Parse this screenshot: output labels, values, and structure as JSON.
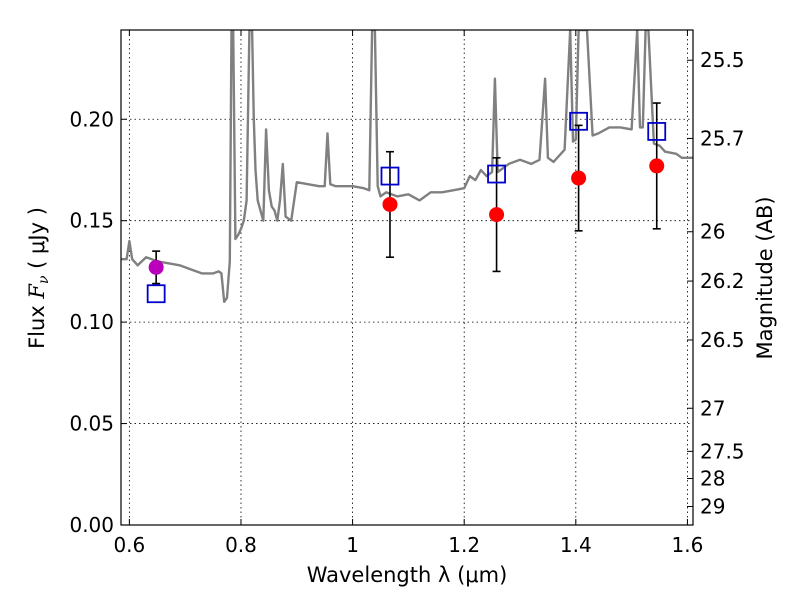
{
  "chart_data": {
    "type": "scatter",
    "xlabel": "Wavelength  λ (μm)",
    "ylabel": "Flux  Fν  ( μJy )",
    "y2label": "Magnitude (AB)",
    "xlim": [
      0.585,
      1.61
    ],
    "ylim": [
      0.0,
      0.244
    ],
    "grid": true,
    "x_ticks": [
      0.6,
      0.8,
      1.0,
      1.2,
      1.4,
      1.6
    ],
    "x_tick_labels": [
      "0.6",
      "0.8",
      "1",
      "1.2",
      "1.4",
      "1.6"
    ],
    "y_ticks": [
      0.0,
      0.05,
      0.1,
      0.15,
      0.2
    ],
    "y_tick_labels": [
      "0.00",
      "0.05",
      "0.10",
      "0.15",
      "0.20"
    ],
    "y2_ticks": [
      {
        "mag": 25.5,
        "label": "25.5"
      },
      {
        "mag": 25.7,
        "label": "25.7"
      },
      {
        "mag": 26.0,
        "label": "26"
      },
      {
        "mag": 26.2,
        "label": "26.2"
      },
      {
        "mag": 26.5,
        "label": "26.5"
      },
      {
        "mag": 27.0,
        "label": "27"
      },
      {
        "mag": 27.5,
        "label": "27.5"
      },
      {
        "mag": 28.0,
        "label": "28"
      },
      {
        "mag": 29.0,
        "label": "29"
      }
    ],
    "model_spectrum": {
      "color": "#808080",
      "x": [
        0.585,
        0.595,
        0.6,
        0.605,
        0.615,
        0.63,
        0.65,
        0.67,
        0.69,
        0.71,
        0.72,
        0.73,
        0.74,
        0.75,
        0.76,
        0.765,
        0.77,
        0.775,
        0.78,
        0.783,
        0.786,
        0.79,
        0.795,
        0.8,
        0.805,
        0.81,
        0.815,
        0.82,
        0.823,
        0.826,
        0.83,
        0.835,
        0.84,
        0.845,
        0.85,
        0.855,
        0.86,
        0.865,
        0.87,
        0.875,
        0.88,
        0.89,
        0.9,
        0.92,
        0.94,
        0.95,
        0.955,
        0.96,
        0.97,
        1.0,
        1.02,
        1.03,
        1.035,
        1.04,
        1.045,
        1.05,
        1.06,
        1.08,
        1.1,
        1.12,
        1.14,
        1.16,
        1.18,
        1.2,
        1.21,
        1.22,
        1.23,
        1.24,
        1.25,
        1.255,
        1.26,
        1.265,
        1.27,
        1.28,
        1.3,
        1.32,
        1.335,
        1.34,
        1.345,
        1.35,
        1.36,
        1.38,
        1.39,
        1.395,
        1.4,
        1.405,
        1.41,
        1.42,
        1.43,
        1.44,
        1.46,
        1.48,
        1.5,
        1.51,
        1.515,
        1.52,
        1.525,
        1.53,
        1.54,
        1.55,
        1.56,
        1.58,
        1.59,
        1.6,
        1.61
      ],
      "y": [
        0.131,
        0.131,
        0.14,
        0.131,
        0.128,
        0.132,
        0.13,
        0.129,
        0.128,
        0.126,
        0.125,
        0.124,
        0.124,
        0.124,
        0.125,
        0.124,
        0.11,
        0.112,
        0.13,
        0.244,
        0.244,
        0.141,
        0.143,
        0.146,
        0.15,
        0.16,
        0.244,
        0.244,
        0.2,
        0.175,
        0.16,
        0.155,
        0.15,
        0.195,
        0.165,
        0.157,
        0.155,
        0.15,
        0.16,
        0.178,
        0.152,
        0.15,
        0.169,
        0.168,
        0.167,
        0.167,
        0.193,
        0.168,
        0.167,
        0.167,
        0.166,
        0.165,
        0.244,
        0.244,
        0.167,
        0.162,
        0.164,
        0.162,
        0.163,
        0.16,
        0.164,
        0.164,
        0.165,
        0.166,
        0.172,
        0.17,
        0.175,
        0.172,
        0.174,
        0.22,
        0.174,
        0.175,
        0.176,
        0.178,
        0.18,
        0.178,
        0.18,
        0.2,
        0.22,
        0.181,
        0.179,
        0.185,
        0.244,
        0.189,
        0.19,
        0.244,
        0.244,
        0.244,
        0.192,
        0.193,
        0.196,
        0.196,
        0.195,
        0.244,
        0.196,
        0.196,
        0.244,
        0.244,
        0.188,
        0.187,
        0.184,
        0.183,
        0.181,
        0.181,
        0.181
      ]
    },
    "series": [
      {
        "name": "",
        "marker": "circle",
        "color": "#ff0000",
        "points": [
          {
            "x": 1.067,
            "y": 0.158,
            "err": 0.026
          },
          {
            "x": 1.258,
            "y": 0.153,
            "err": 0.028
          },
          {
            "x": 1.405,
            "y": 0.171,
            "err": 0.026
          },
          {
            "x": 1.545,
            "y": 0.177,
            "err": 0.031
          }
        ]
      },
      {
        "name": "",
        "marker": "circle",
        "color": "#bb00bb",
        "points": [
          {
            "x": 0.648,
            "y": 0.127,
            "err": 0.008
          }
        ]
      },
      {
        "name": "",
        "marker": "square-open",
        "color": "#0000cc",
        "points": [
          {
            "x": 0.648,
            "y": 0.114
          },
          {
            "x": 1.067,
            "y": 0.172
          },
          {
            "x": 1.258,
            "y": 0.173
          },
          {
            "x": 1.405,
            "y": 0.199
          },
          {
            "x": 1.545,
            "y": 0.194
          }
        ]
      }
    ]
  }
}
